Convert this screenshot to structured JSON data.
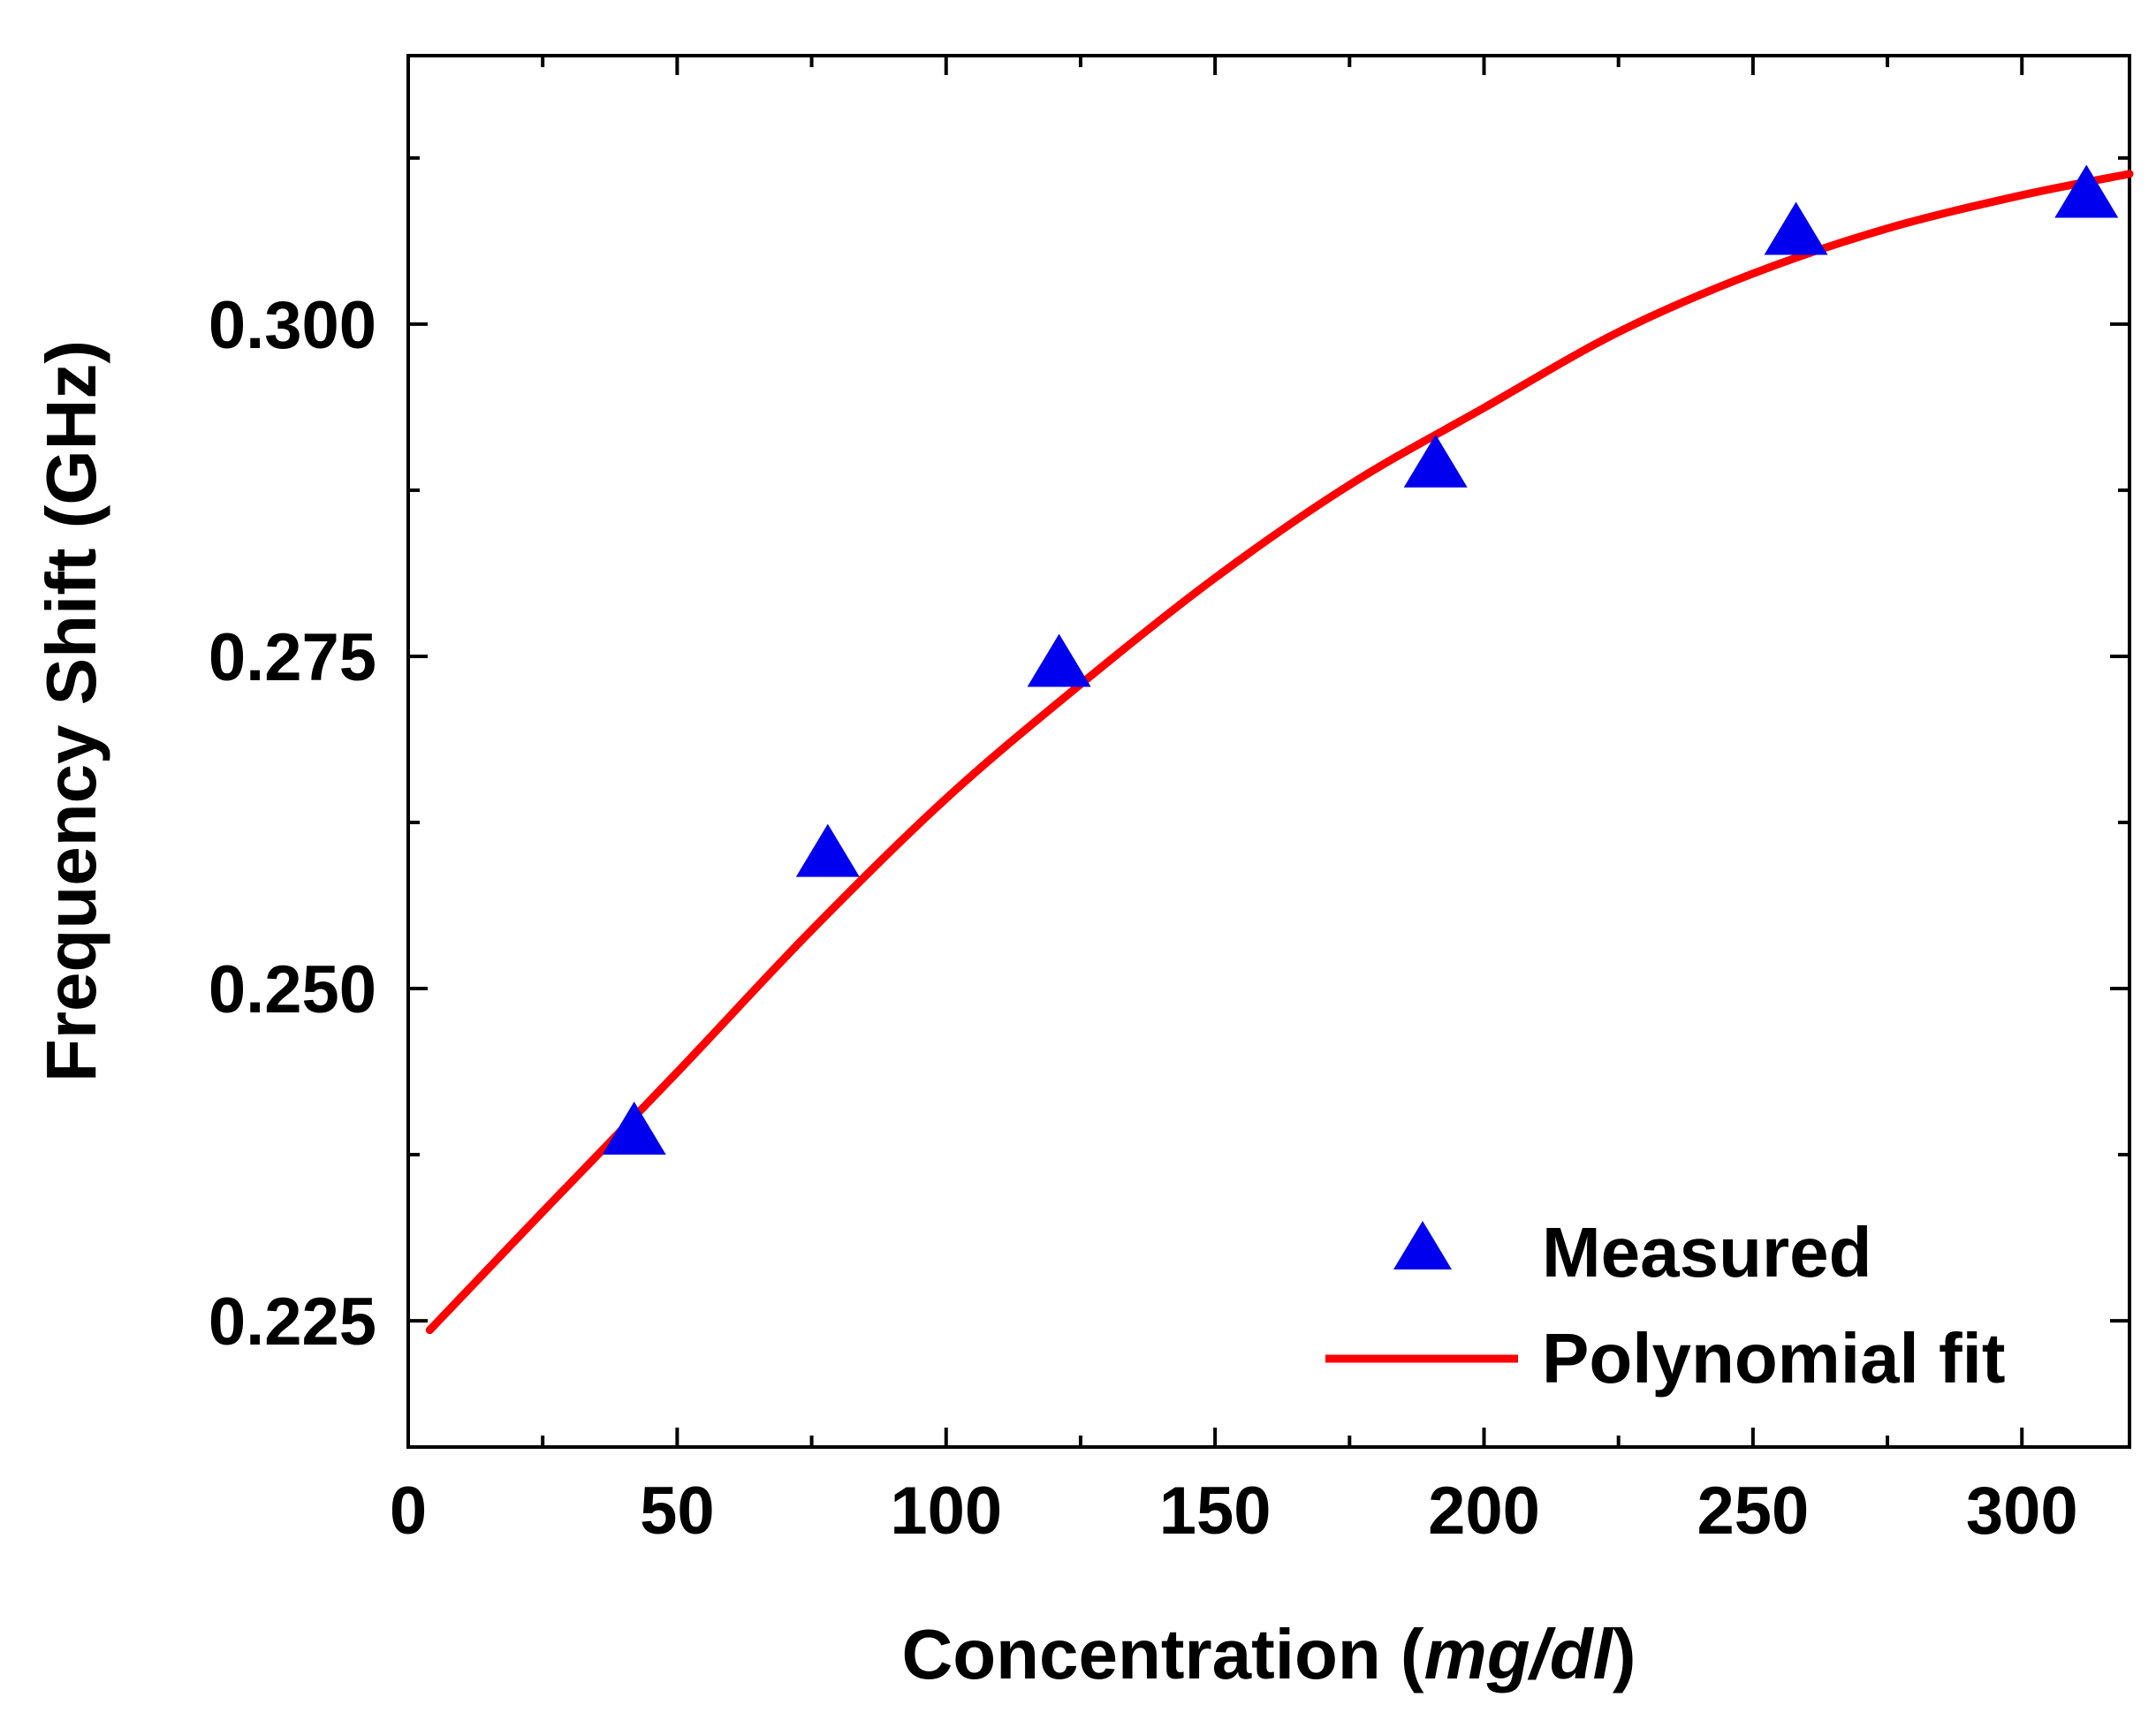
{
  "chart_data": {
    "type": "scatter",
    "title": "",
    "xlabel": {
      "prefix": "Concentration (",
      "unit": "mg/dl",
      "suffix": ")"
    },
    "ylabel": "Frequency Shift (GHz)",
    "xlim": [
      0,
      320
    ],
    "ylim": [
      0.2155,
      0.3202
    ],
    "x_ticks": [
      0,
      50,
      100,
      150,
      200,
      250,
      300
    ],
    "x_tick_labels": [
      "0",
      "50",
      "100",
      "150",
      "200",
      "250",
      "300"
    ],
    "x_minor_step": 25,
    "y_ticks": [
      0.225,
      0.25,
      0.275,
      0.3
    ],
    "y_tick_labels": [
      "0.225",
      "0.250",
      "0.275",
      "0.300"
    ],
    "y_minor_step": 0.0125,
    "grid": false,
    "legend_position": "bottom-right",
    "series": [
      {
        "name": "Measured",
        "kind": "scatter",
        "marker": "triangle",
        "color": "#0000ee",
        "x": [
          42,
          78,
          121,
          191,
          258,
          312
        ],
        "y": [
          0.2395,
          0.2604,
          0.2747,
          0.2897,
          0.3072,
          0.31
        ]
      },
      {
        "name": "Polynomial fit",
        "kind": "line",
        "color": "#ff0000",
        "x": [
          4,
          25,
          50,
          75,
          100,
          125,
          150,
          175,
          200,
          225,
          250,
          275,
          300,
          320
        ],
        "y": [
          0.2243,
          0.2332,
          0.2437,
          0.2544,
          0.2643,
          0.2729,
          0.2809,
          0.2879,
          0.2937,
          0.2994,
          0.3038,
          0.3072,
          0.3097,
          0.3113
        ]
      }
    ]
  }
}
